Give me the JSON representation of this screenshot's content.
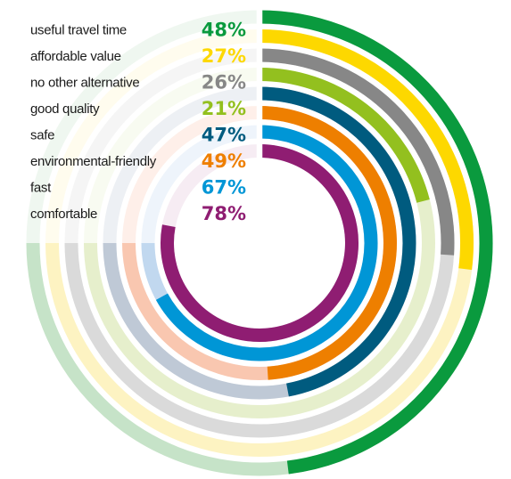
{
  "chart_data": {
    "type": "radial-bar",
    "title": "",
    "series": [
      {
        "label": "useful travel time",
        "value": 48,
        "display": "48%",
        "color": "#0a9a3e",
        "track": "#c6e3c8"
      },
      {
        "label": "affordable value",
        "value": 27,
        "display": "27%",
        "color": "#fdd800",
        "track": "#fdf3c2"
      },
      {
        "label": "no other alternative",
        "value": 26,
        "display": "26%",
        "color": "#878787",
        "track": "#dadada"
      },
      {
        "label": "good quality",
        "value": 21,
        "display": "21%",
        "color": "#93c01f",
        "track": "#e6efcc"
      },
      {
        "label": "safe",
        "value": 47,
        "display": "47%",
        "color": "#005b7f",
        "track": "#bfc9d6"
      },
      {
        "label": "environmental-friendly",
        "value": 49,
        "display": "49%",
        "color": "#ee7f00",
        "track": "#f9c7b0"
      },
      {
        "label": "fast",
        "value": 67,
        "display": "67%",
        "color": "#0096d6",
        "track": "#c1d8ef"
      },
      {
        "label": "comfortable",
        "value": 78,
        "display": "78%",
        "color": "#8f1d72",
        "track": "#ddbcd3"
      }
    ],
    "max": 100,
    "start": "12 o'clock",
    "direction": "clockwise"
  }
}
